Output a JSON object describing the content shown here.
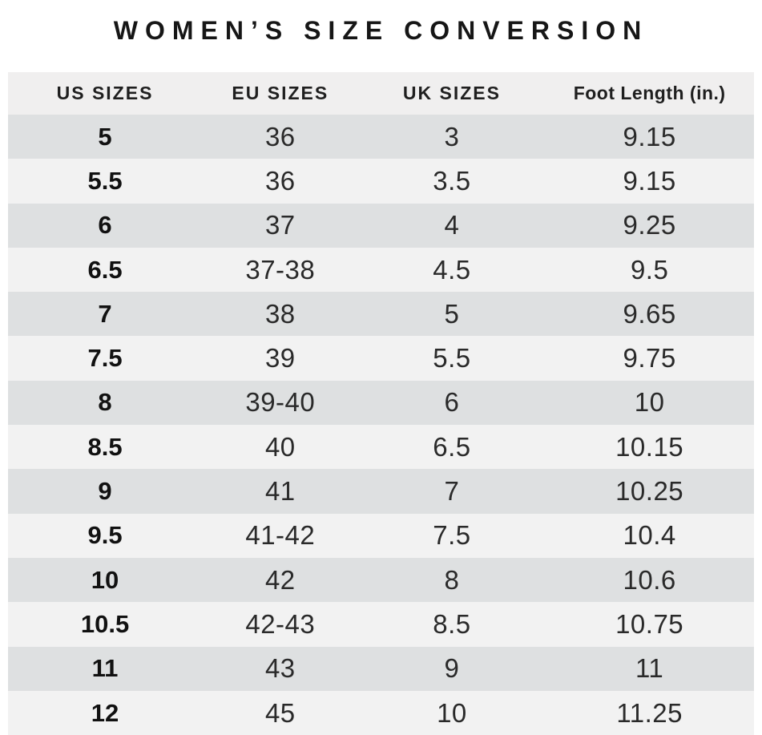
{
  "title": "WOMEN’S SIZE CONVERSION",
  "colors": {
    "page_background": "#ffffff",
    "header_row_background": "#f0efef",
    "row_dark": "#dee0e1",
    "row_light": "#f2f2f2",
    "text": "#1f1f1f"
  },
  "chart_data": {
    "type": "table",
    "title": "WOMEN’S SIZE CONVERSION",
    "columns": [
      "US SIZES",
      "EU SIZES",
      "UK SIZES",
      "Foot Length (in.)"
    ],
    "rows": [
      [
        "5",
        "36",
        "3",
        "9.15"
      ],
      [
        "5.5",
        "36",
        "3.5",
        "9.15"
      ],
      [
        "6",
        "37",
        "4",
        "9.25"
      ],
      [
        "6.5",
        "37-38",
        "4.5",
        "9.5"
      ],
      [
        "7",
        "38",
        "5",
        "9.65"
      ],
      [
        "7.5",
        "39",
        "5.5",
        "9.75"
      ],
      [
        "8",
        "39-40",
        "6",
        "10"
      ],
      [
        "8.5",
        "40",
        "6.5",
        "10.15"
      ],
      [
        "9",
        "41",
        "7",
        "10.25"
      ],
      [
        "9.5",
        "41-42",
        "7.5",
        "10.4"
      ],
      [
        "10",
        "42",
        "8",
        "10.6"
      ],
      [
        "10.5",
        "42-43",
        "8.5",
        "10.75"
      ],
      [
        "11",
        "43",
        "9",
        "11"
      ],
      [
        "12",
        "45",
        "10",
        "11.25"
      ]
    ],
    "layout": {
      "stripe_pattern": "first data row dark, alternating",
      "bold_column": "US SIZES"
    }
  }
}
